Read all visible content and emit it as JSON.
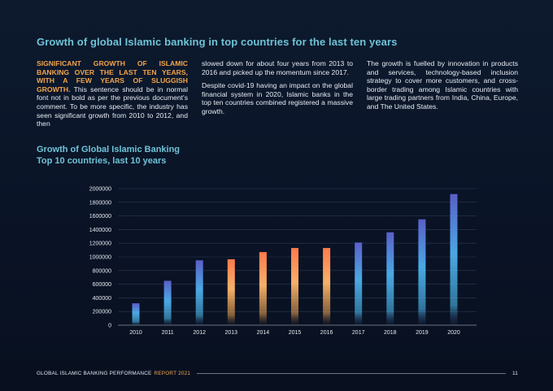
{
  "page_title": "Growth of global Islamic banking in top countries for the last ten years",
  "columns": {
    "col1_lead": "SIGNIFICANT GROWTH OF ISLAMIC BANKING OVER THE LAST TEN YEARS, WITH A FEW YEARS OF SLUGGISH GROWTH.",
    "col1_body": "This sentence should be in normal font not in bold as per the previous document's comment. To be more specific, the industry has seen significant growth from 2010 to 2012, and then",
    "col2_p1": "slowed down for about four years from 2013 to 2016 and picked up the momentum since 2017.",
    "col2_p2": "Despite covid-19 having an impact on the global financial system in 2020, Islamic banks in the top ten countries combined registered a massive growth.",
    "col3_p1": "The growth is fuelled by innovation in products and services, technology-based inclusion strategy to cover more customers, and cross-border trading among Islamic countries with large trading partners from India, China, Europe, and The United States."
  },
  "chart_title_line1": "Growth of Global Islamic Banking",
  "chart_title_line2": "Top 10 countries, last 10 years",
  "chart_data": {
    "type": "bar",
    "title": "Growth of Global Islamic Banking — Top 10 countries, last 10 years",
    "xlabel": "",
    "ylabel": "",
    "categories": [
      "2010",
      "2011",
      "2012",
      "2013",
      "2014",
      "2015",
      "2016",
      "2017",
      "2018",
      "2019",
      "2020"
    ],
    "values": [
      320000,
      650000,
      950000,
      965000,
      1070000,
      1130000,
      1130000,
      1210000,
      1360000,
      1550000,
      1920000
    ],
    "bar_colors": [
      "blue",
      "blue",
      "blue",
      "orange",
      "orange",
      "orange",
      "orange",
      "blue",
      "blue",
      "blue",
      "blue"
    ],
    "yticks": [
      "0",
      "200000",
      "400000",
      "600000",
      "800000",
      "1000000",
      "1200000",
      "1400000",
      "1600000",
      "1800000",
      "2000000"
    ],
    "ylim": [
      0,
      2000000
    ],
    "grid": true,
    "legend": "none"
  },
  "colors": {
    "accent_teal": "#6fc3d6",
    "accent_orange": "#f2a54a",
    "bar_blue_top": "#6a6fd6",
    "bar_blue_mid": "#4fb4e8",
    "bar_orange_top": "#ff8a4a",
    "bar_orange_mid": "#f4b86a"
  },
  "footer": {
    "left": "GLOBAL ISLAMIC BANKING PERFORMANCE",
    "accent": "REPORT 2021",
    "page": "11"
  }
}
